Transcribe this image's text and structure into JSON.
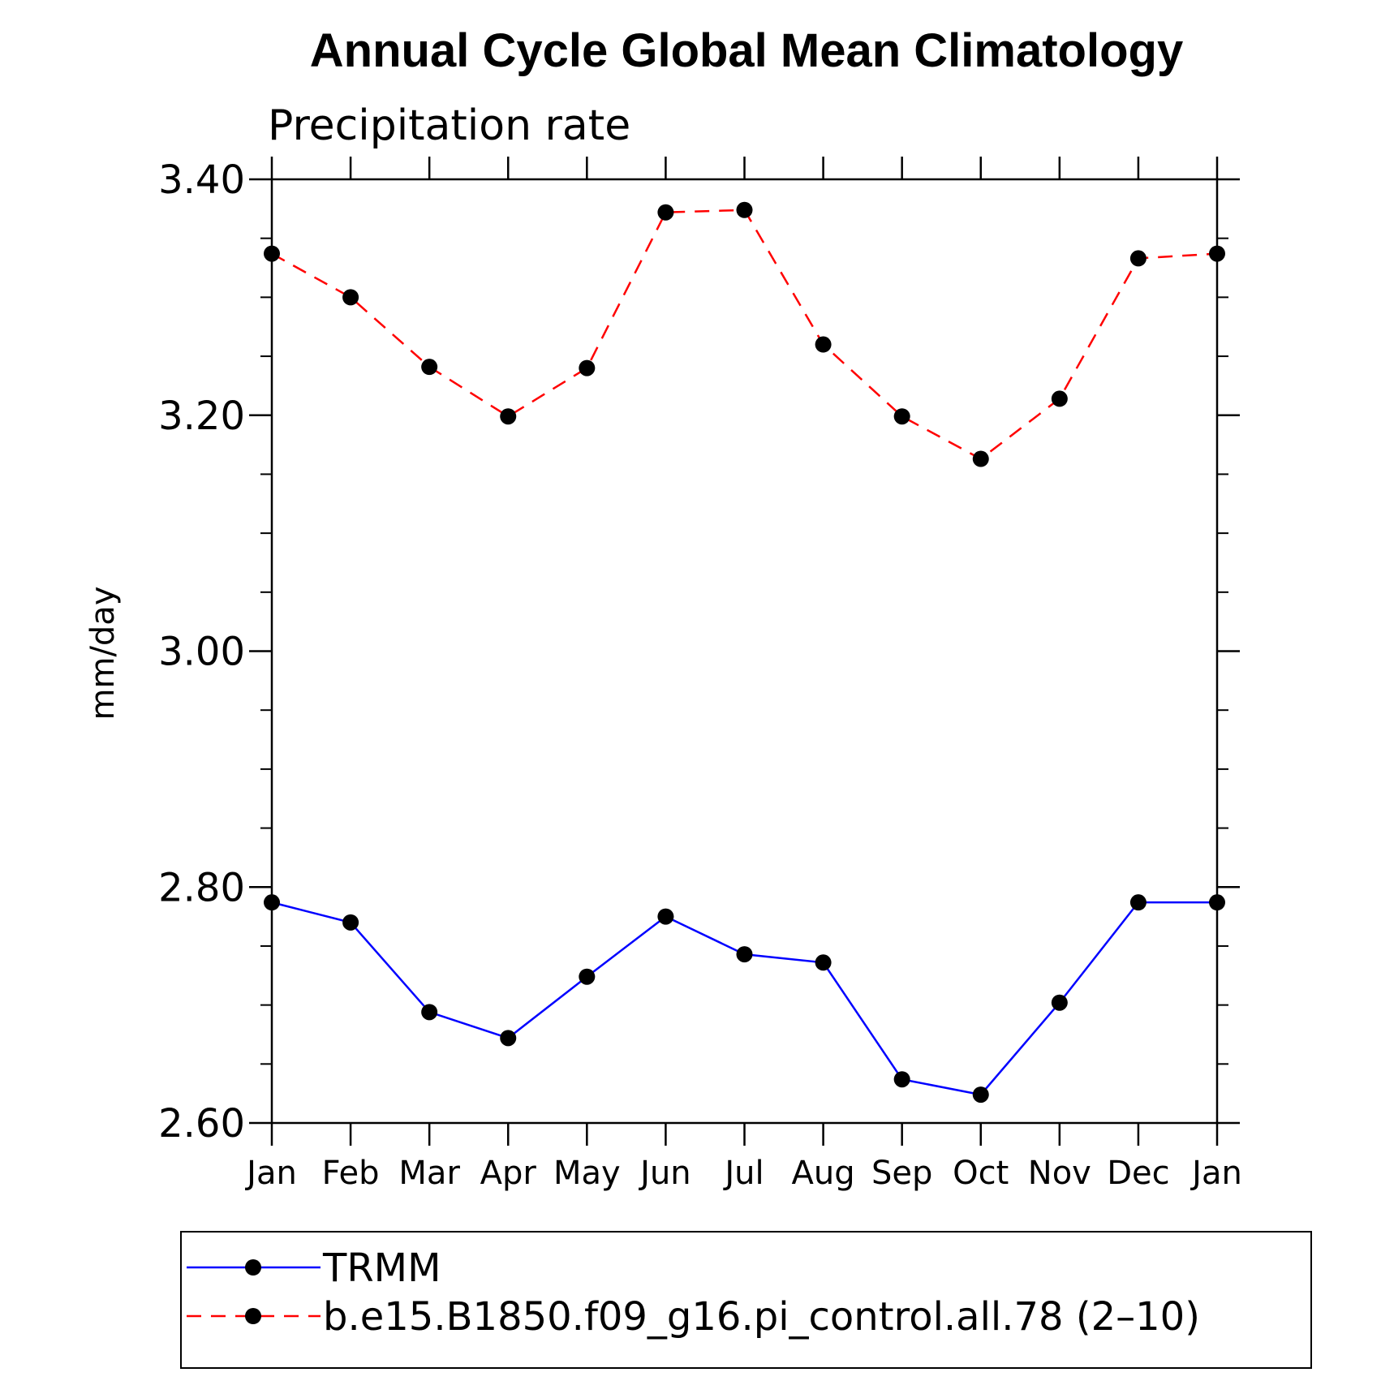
{
  "chart_data": {
    "type": "line",
    "title": "Annual Cycle Global Mean Climatology",
    "subtitle": "Precipitation rate",
    "ylabel": "mm/day",
    "xlabel": "",
    "categories": [
      "Jan",
      "Feb",
      "Mar",
      "Apr",
      "May",
      "Jun",
      "Jul",
      "Aug",
      "Sep",
      "Oct",
      "Nov",
      "Dec",
      "Jan"
    ],
    "ylim": [
      2.6,
      3.4
    ],
    "yticks": [
      "2.60",
      "2.80",
      "3.00",
      "3.20",
      "3.40"
    ],
    "grid": false,
    "legend_position": "bottom",
    "series": [
      {
        "name": "TRMM",
        "color": "#0000ff",
        "dash": "solid",
        "values": [
          2.787,
          2.77,
          2.694,
          2.672,
          2.724,
          2.775,
          2.743,
          2.736,
          2.637,
          2.624,
          2.702,
          2.787,
          2.787
        ]
      },
      {
        "name": "b.e15.B1850.f09_g16.pi_control.all.78 (2–10)",
        "color": "#ff0000",
        "dash": "dashed",
        "values": [
          3.337,
          3.3,
          3.241,
          3.199,
          3.24,
          3.372,
          3.374,
          3.26,
          3.199,
          3.163,
          3.214,
          3.333,
          3.337
        ]
      }
    ]
  }
}
